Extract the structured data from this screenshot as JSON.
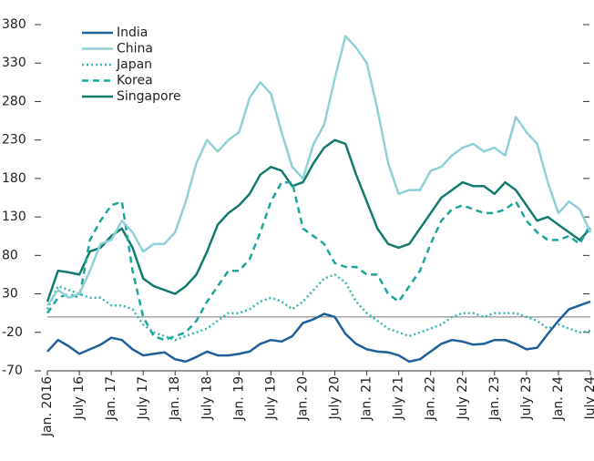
{
  "chart_data": {
    "type": "line",
    "categories": [
      "Jan. 2016",
      null,
      null,
      "July 16",
      null,
      null,
      "Jan. 17",
      null,
      null,
      "July 17",
      null,
      null,
      "Jan. 18",
      null,
      null,
      "July 18",
      null,
      null,
      "Jan. 19",
      null,
      null,
      "July 19",
      null,
      null,
      "Jan. 20",
      null,
      null,
      "July 20",
      null,
      null,
      "Jan. 21",
      null,
      null,
      "July 21",
      null,
      null,
      "Jan. 22",
      null,
      null,
      "July 22",
      null,
      null,
      "Jan. 23",
      null,
      null,
      "July 23",
      null,
      null,
      "Jan. 24",
      null,
      null,
      "July 24"
    ],
    "ylim": [
      -70,
      380
    ],
    "yticks": [
      -70,
      -20,
      30,
      80,
      130,
      180,
      230,
      280,
      330,
      380
    ],
    "series": [
      {
        "name": "India",
        "color": "#1f5f9a",
        "style": "solid",
        "values": [
          -45,
          -30,
          -38,
          -48,
          -42,
          -36,
          -27,
          -30,
          -42,
          -50,
          -48,
          -46,
          -55,
          -58,
          -52,
          -45,
          -50,
          -50,
          -48,
          -45,
          -35,
          -30,
          -32,
          -25,
          -8,
          -3,
          4,
          0,
          -22,
          -35,
          -42,
          -45,
          -46,
          -50,
          -58,
          -55,
          -45,
          -35,
          -30,
          -32,
          -36,
          -35,
          -30,
          -30,
          -35,
          -42,
          -40,
          -22,
          -5,
          10,
          15,
          20
        ]
      },
      {
        "name": "China",
        "color": "#8fd0d8",
        "style": "solid",
        "values": [
          15,
          35,
          25,
          30,
          60,
          95,
          100,
          125,
          110,
          85,
          95,
          95,
          110,
          150,
          200,
          230,
          215,
          230,
          240,
          285,
          305,
          290,
          240,
          195,
          180,
          225,
          250,
          310,
          365,
          350,
          330,
          270,
          200,
          160,
          165,
          165,
          190,
          195,
          210,
          220,
          225,
          215,
          220,
          210,
          260,
          240,
          225,
          175,
          135,
          150,
          140,
          110
        ]
      },
      {
        "name": "Japan",
        "color": "#3ab5b0",
        "style": "dotted",
        "values": [
          10,
          40,
          35,
          30,
          25,
          25,
          15,
          15,
          10,
          -10,
          -20,
          -25,
          -30,
          -25,
          -20,
          -15,
          -5,
          5,
          5,
          10,
          20,
          25,
          20,
          10,
          20,
          35,
          50,
          55,
          45,
          20,
          5,
          -5,
          -15,
          -20,
          -25,
          -20,
          -15,
          -10,
          0,
          5,
          5,
          0,
          5,
          5,
          5,
          0,
          -5,
          -15,
          -10,
          -15,
          -20,
          -18
        ]
      },
      {
        "name": "Korea",
        "color": "#1aa69a",
        "style": "dashed",
        "values": [
          5,
          25,
          30,
          25,
          100,
          125,
          145,
          150,
          60,
          0,
          -25,
          -30,
          -25,
          -20,
          -5,
          20,
          40,
          60,
          60,
          75,
          110,
          150,
          175,
          175,
          115,
          105,
          95,
          70,
          65,
          65,
          55,
          55,
          30,
          20,
          40,
          60,
          95,
          125,
          140,
          145,
          140,
          135,
          135,
          140,
          150,
          125,
          110,
          100,
          100,
          105,
          95,
          120
        ]
      },
      {
        "name": "Singapore",
        "color": "#137a6e",
        "style": "solid",
        "values": [
          20,
          60,
          58,
          55,
          85,
          90,
          105,
          115,
          90,
          50,
          40,
          35,
          30,
          40,
          55,
          85,
          120,
          135,
          145,
          160,
          185,
          195,
          190,
          170,
          175,
          200,
          220,
          230,
          225,
          185,
          150,
          115,
          95,
          90,
          95,
          115,
          135,
          155,
          165,
          175,
          170,
          170,
          160,
          175,
          165,
          145,
          125,
          130,
          120,
          110,
          100,
          115
        ]
      }
    ]
  }
}
